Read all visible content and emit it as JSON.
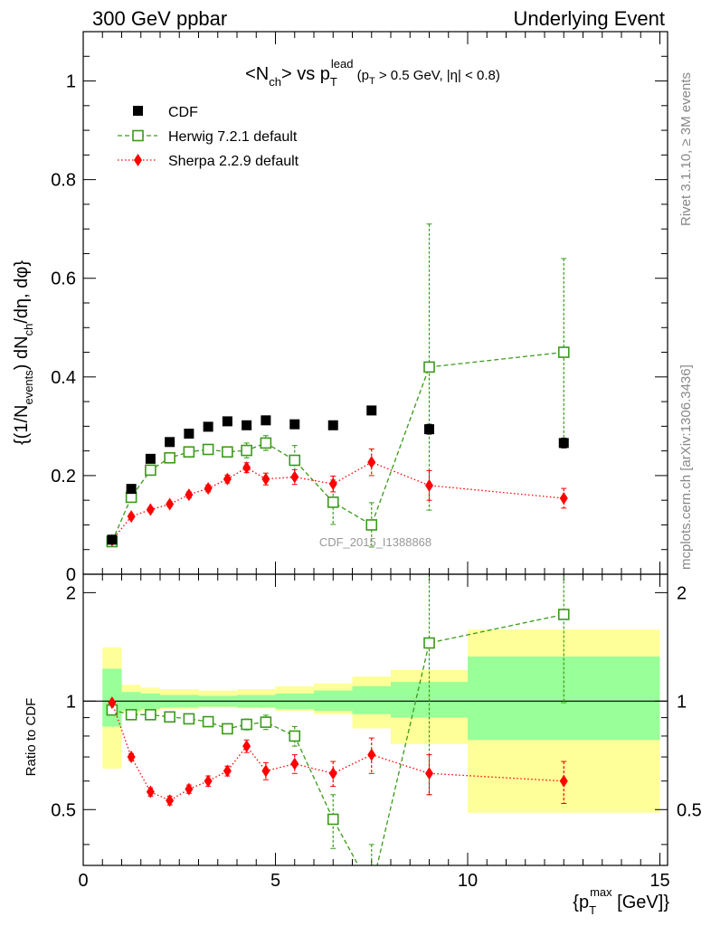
{
  "header": {
    "left": "300 GeV ppbar",
    "right": "Underlying Event"
  },
  "side_labels": {
    "rivet": "Rivet 3.1.10, ≥ 3M events",
    "mcplots": "mcplots.cern.ch [arXiv:1306.3436]"
  },
  "watermark": "CDF_2015_I1388868",
  "colors": {
    "cdf": "#000000",
    "herwig": "#3a9a1a",
    "sherpa": "#ff0000",
    "band_outer": "#ffff99",
    "band_inner": "#99ff99"
  },
  "chart_data": [
    {
      "type": "scatter",
      "panel": "main",
      "title": "<Nch> vs pT lead (pT > 0.5 GeV, |η| < 0.8)",
      "ylabel": "{(1/Nevents) dNch/dη, dφ}",
      "ylim": [
        0,
        1.1
      ],
      "xlim": [
        0,
        15.2
      ],
      "yticks": [
        "0",
        "0.2",
        "0.4",
        "0.6",
        "0.8",
        "1"
      ],
      "legend_position": "top-left",
      "x": [
        0.75,
        1.25,
        1.75,
        2.25,
        2.75,
        3.25,
        3.75,
        4.25,
        4.75,
        5.5,
        6.5,
        7.5,
        9.0,
        12.5
      ],
      "series": [
        {
          "name": "CDF",
          "marker": "square-filled",
          "values": [
            0.07,
            0.173,
            0.234,
            0.268,
            0.285,
            0.299,
            0.31,
            0.302,
            0.312,
            0.304,
            0.302,
            0.332,
            0.294,
            0.266
          ],
          "errors": [
            0.005,
            0.005,
            0.005,
            0.005,
            0.005,
            0.005,
            0.005,
            0.005,
            0.005,
            0.005,
            0.005,
            0.005,
            0.01,
            0.01
          ]
        },
        {
          "name": "Herwig 7.2.1 default",
          "marker": "square-open",
          "line": "dashed",
          "values": [
            0.066,
            0.156,
            0.211,
            0.236,
            0.248,
            0.253,
            0.248,
            0.251,
            0.266,
            0.231,
            0.146,
            0.1,
            0.42,
            0.45
          ],
          "errors": [
            0.004,
            0.008,
            0.008,
            0.008,
            0.008,
            0.008,
            0.01,
            0.015,
            0.015,
            0.03,
            0.045,
            0.045,
            0.29,
            0.19
          ]
        },
        {
          "name": "Sherpa 2.2.9 default",
          "marker": "diamond-filled",
          "line": "dotted",
          "values": [
            0.069,
            0.117,
            0.131,
            0.142,
            0.161,
            0.174,
            0.193,
            0.216,
            0.193,
            0.197,
            0.183,
            0.227,
            0.18,
            0.154
          ],
          "errors": [
            0.003,
            0.005,
            0.005,
            0.005,
            0.006,
            0.007,
            0.008,
            0.01,
            0.012,
            0.015,
            0.016,
            0.027,
            0.03,
            0.02
          ]
        }
      ]
    },
    {
      "type": "scatter",
      "panel": "ratio",
      "ylabel": "Ratio to CDF",
      "xlabel": "{pT max [GeV]}",
      "ylim": [
        0.35,
        2.25
      ],
      "xlim": [
        0,
        15.2
      ],
      "xticks": [
        "0",
        "5",
        "10",
        "15"
      ],
      "yticks": [
        "0.5",
        "1",
        "2"
      ],
      "x": [
        0.75,
        1.25,
        1.75,
        2.25,
        2.75,
        3.25,
        3.75,
        4.25,
        4.75,
        5.5,
        6.5,
        7.5,
        9.0,
        12.5
      ],
      "bands": [
        {
          "xmin": 0.5,
          "xmax": 1.0,
          "lo_outer": 0.65,
          "hi_outer": 1.41,
          "lo_inner": 0.85,
          "hi_inner": 1.23
        },
        {
          "xmin": 1.0,
          "xmax": 1.5,
          "lo_outer": 0.93,
          "hi_outer": 1.11,
          "lo_inner": 0.94,
          "hi_inner": 1.06
        },
        {
          "xmin": 1.5,
          "xmax": 2.0,
          "lo_outer": 0.94,
          "hi_outer": 1.09,
          "lo_inner": 0.95,
          "hi_inner": 1.05
        },
        {
          "xmin": 2.0,
          "xmax": 3.0,
          "lo_outer": 0.95,
          "hi_outer": 1.08,
          "lo_inner": 0.96,
          "hi_inner": 1.04
        },
        {
          "xmin": 3.0,
          "xmax": 4.0,
          "lo_outer": 0.96,
          "hi_outer": 1.07,
          "lo_inner": 0.965,
          "hi_inner": 1.035
        },
        {
          "xmin": 4.0,
          "xmax": 5.0,
          "lo_outer": 0.955,
          "hi_outer": 1.08,
          "lo_inner": 0.96,
          "hi_inner": 1.04
        },
        {
          "xmin": 5.0,
          "xmax": 6.0,
          "lo_outer": 0.94,
          "hi_outer": 1.1,
          "lo_inner": 0.95,
          "hi_inner": 1.05
        },
        {
          "xmin": 6.0,
          "xmax": 7.0,
          "lo_outer": 0.92,
          "hi_outer": 1.12,
          "lo_inner": 0.94,
          "hi_inner": 1.07
        },
        {
          "xmin": 7.0,
          "xmax": 8.0,
          "lo_outer": 0.84,
          "hi_outer": 1.17,
          "lo_inner": 0.92,
          "hi_inner": 1.1
        },
        {
          "xmin": 8.0,
          "xmax": 10.0,
          "lo_outer": 0.76,
          "hi_outer": 1.22,
          "lo_inner": 0.9,
          "hi_inner": 1.13
        },
        {
          "xmin": 10.0,
          "xmax": 15.0,
          "lo_outer": 0.49,
          "hi_outer": 1.58,
          "lo_inner": 0.78,
          "hi_inner": 1.33
        }
      ],
      "series": [
        {
          "name": "Herwig 7.2.1 default",
          "marker": "square-open",
          "line": "dashed",
          "values": [
            0.945,
            0.917,
            0.917,
            0.904,
            0.893,
            0.877,
            0.838,
            0.862,
            0.874,
            0.8,
            0.47,
            0.3,
            1.45,
            1.74
          ],
          "errors": [
            0.01,
            0.015,
            0.015,
            0.015,
            0.015,
            0.018,
            0.025,
            0.03,
            0.04,
            0.05,
            0.08,
            0.1,
            0.9,
            0.75
          ]
        },
        {
          "name": "Sherpa 2.2.9 default",
          "marker": "diamond-filled",
          "line": "dotted",
          "values": [
            0.99,
            0.7,
            0.56,
            0.53,
            0.57,
            0.6,
            0.64,
            0.75,
            0.64,
            0.67,
            0.63,
            0.71,
            0.63,
            0.6
          ],
          "errors": [
            0.01,
            0.015,
            0.015,
            0.015,
            0.015,
            0.02,
            0.02,
            0.03,
            0.035,
            0.04,
            0.05,
            0.08,
            0.08,
            0.08
          ]
        }
      ]
    }
  ]
}
